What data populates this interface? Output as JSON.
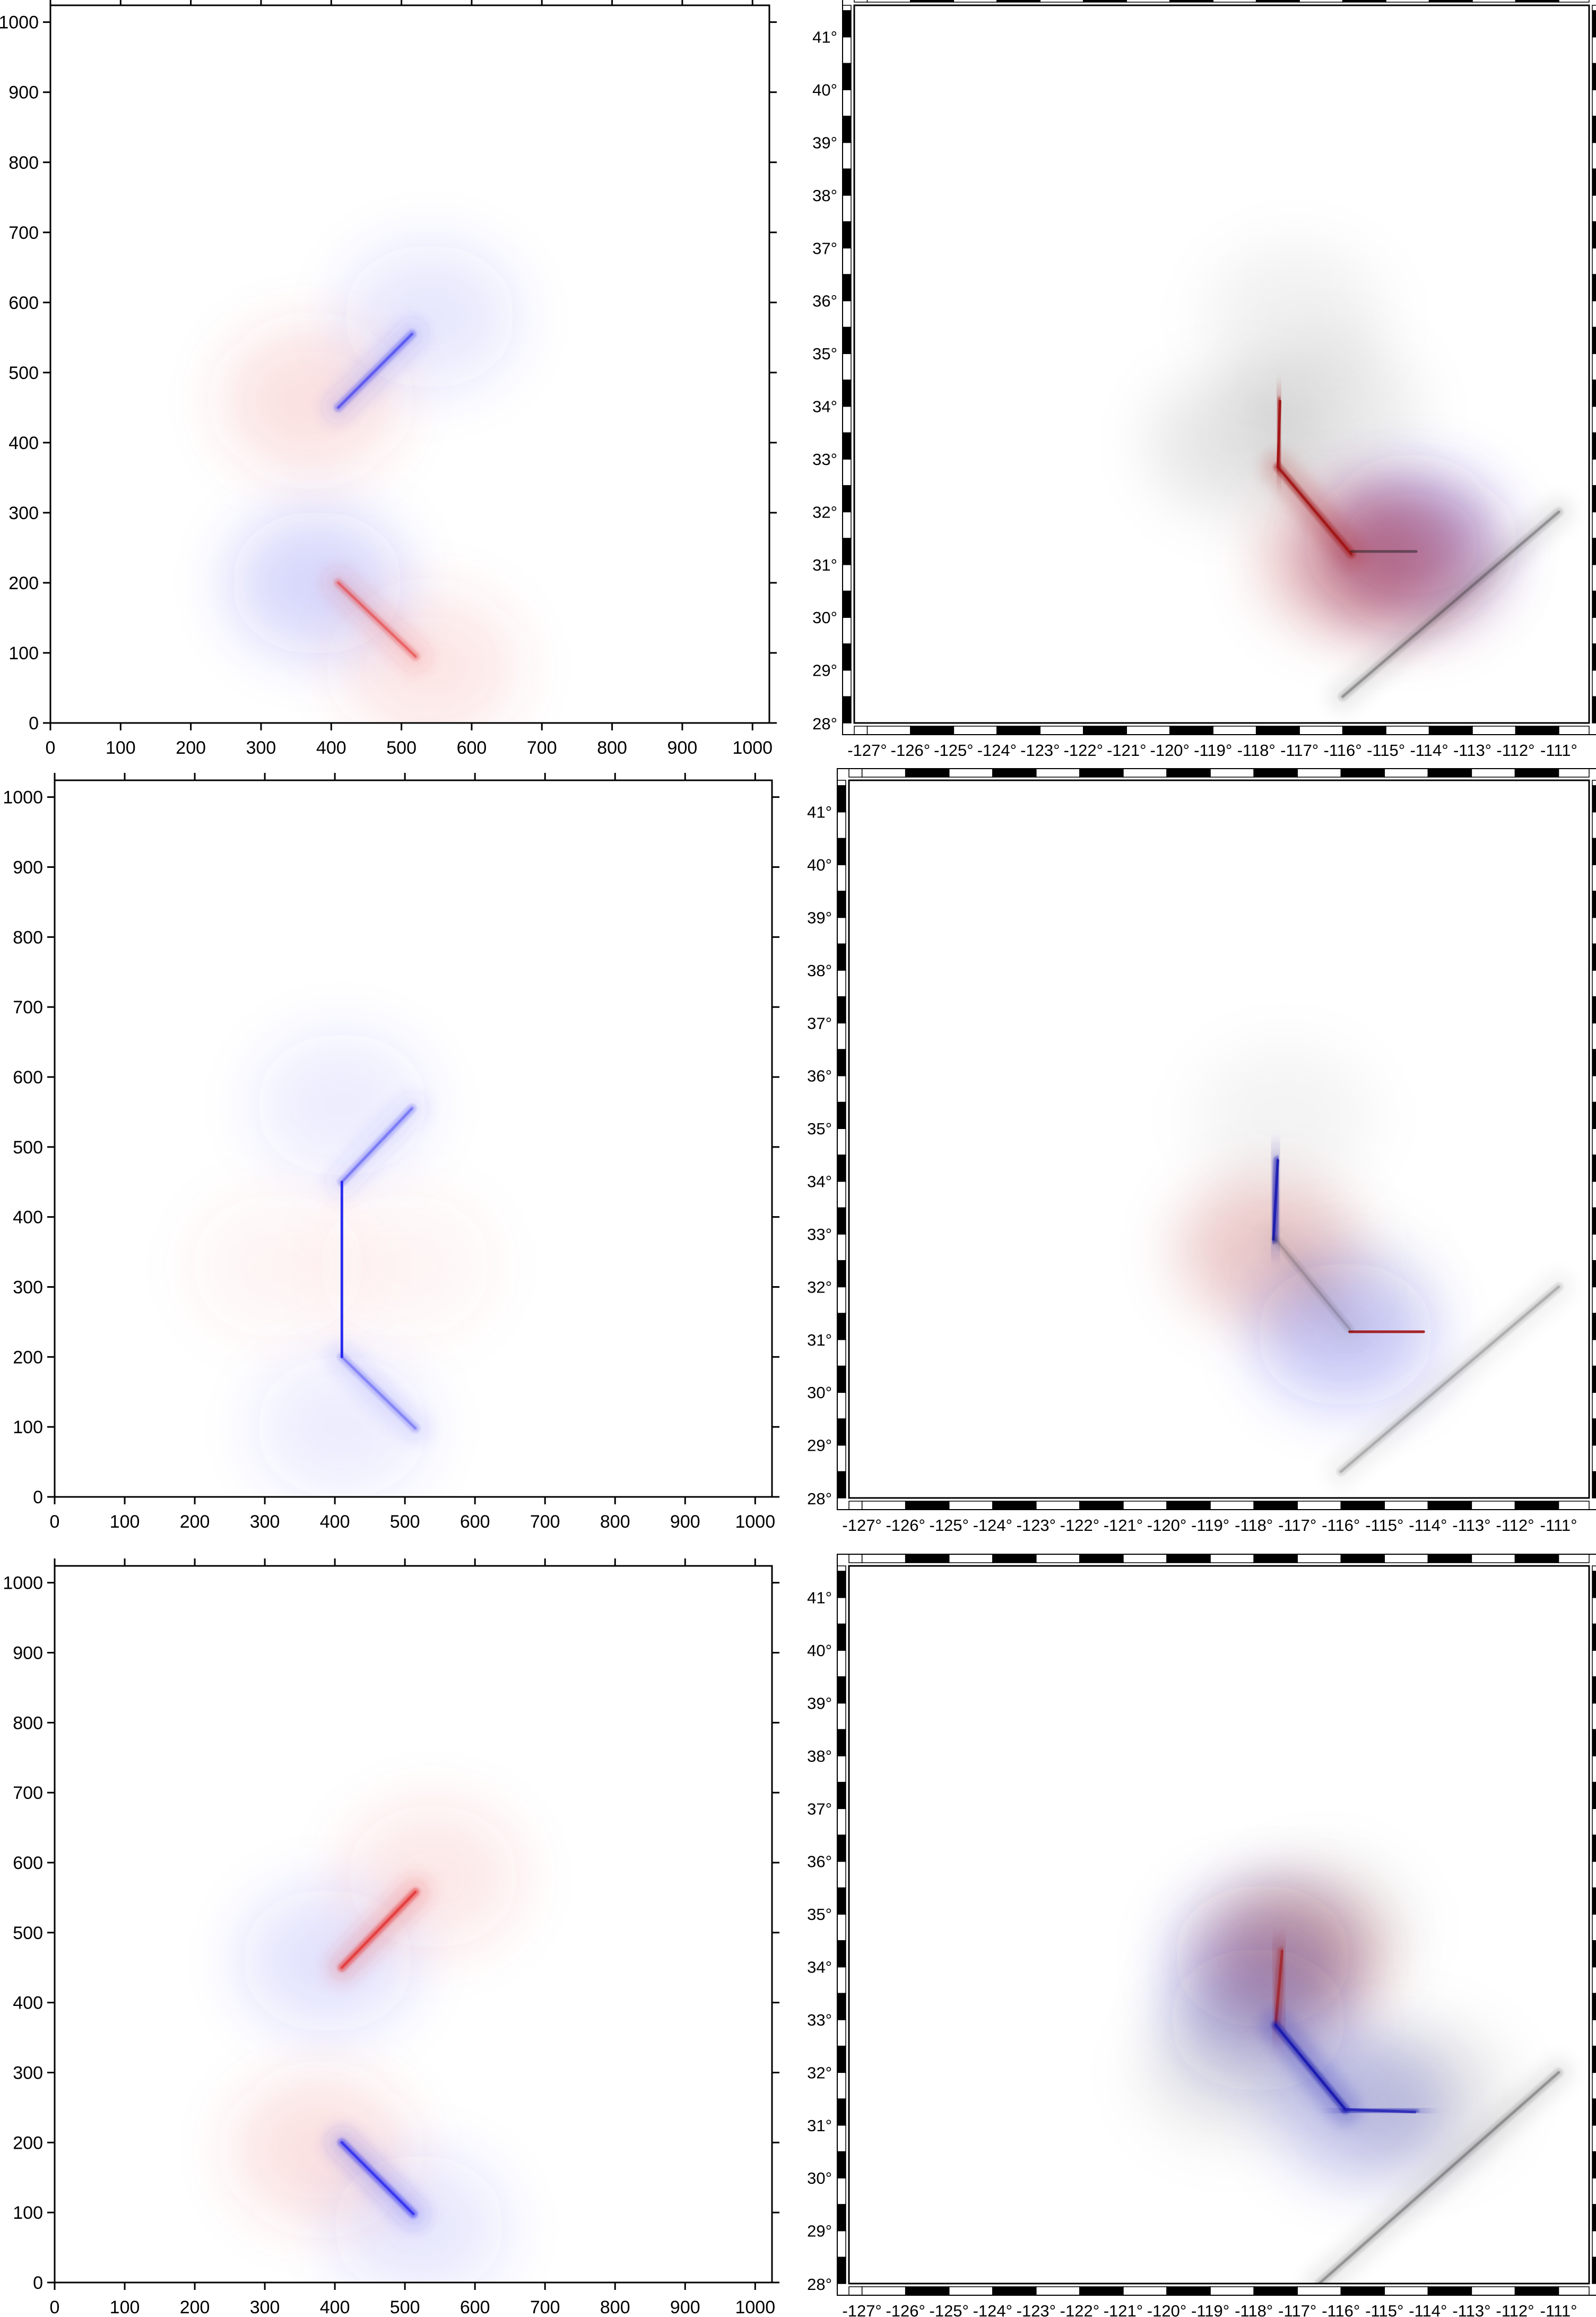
{
  "colors": {
    "positive": "#e53b3b",
    "negative": "#2b2bf0",
    "dark_positive": "#a01010",
    "dark_negative": "#1a1ab0",
    "neutral": "#1a1a1a"
  },
  "chart_data": [
    {
      "type": "heatmap",
      "panel": "row1-left",
      "xlim": [
        0,
        1024
      ],
      "ylim": [
        0,
        1024
      ],
      "x_ticks": [
        "0",
        "100",
        "200",
        "300",
        "400",
        "500",
        "600",
        "700",
        "800",
        "900",
        "1000"
      ],
      "y_ticks": [
        "0",
        "100",
        "200",
        "300",
        "400",
        "500",
        "600",
        "700",
        "800",
        "900",
        "1000"
      ],
      "grid": false,
      "faults": [
        {
          "x": [
            410,
            515
          ],
          "y": [
            450,
            555
          ],
          "sign": "negative",
          "strength": 0.55
        },
        {
          "x": [
            410,
            520
          ],
          "y": [
            200,
            95
          ],
          "sign": "positive",
          "strength": 0.55
        }
      ],
      "lobes": [
        {
          "x": 370,
          "y": 460,
          "sign": "positive",
          "strength": 0.35
        },
        {
          "x": 540,
          "y": 580,
          "sign": "negative",
          "strength": 0.25
        },
        {
          "x": 380,
          "y": 200,
          "sign": "negative",
          "strength": 0.4
        },
        {
          "x": 540,
          "y": 80,
          "sign": "positive",
          "strength": 0.3
        }
      ]
    },
    {
      "type": "heatmap",
      "panel": "row1-right",
      "xlim": [
        -127.3,
        -110.3
      ],
      "ylim": [
        28,
        41.6
      ],
      "x_ticks": [
        "-127°",
        "-126°",
        "-125°",
        "-124°",
        "-123°",
        "-122°",
        "-121°",
        "-120°",
        "-119°",
        "-118°",
        "-117°",
        "-116°",
        "-115°",
        "-114°",
        "-113°",
        "-112°",
        "-111°"
      ],
      "y_ticks": [
        "29°",
        "30°",
        "31°",
        "32°",
        "33°",
        "34°",
        "35°",
        "36°",
        "37°",
        "38°",
        "39°",
        "40°",
        "41°"
      ],
      "grid": false,
      "faults": [
        {
          "x": [
            -117.45,
            -117.5
          ],
          "y": [
            34.1,
            32.85
          ],
          "sign": "dark_positive",
          "strength": 0.9
        },
        {
          "x": [
            -117.5,
            -115.8
          ],
          "y": [
            32.85,
            31.2
          ],
          "sign": "dark_positive",
          "strength": 0.85
        },
        {
          "x": [
            -115.8,
            -114.3
          ],
          "y": [
            31.25,
            31.25
          ],
          "sign": "neutral",
          "strength": 0.5
        },
        {
          "x": [
            -116.0,
            -111.0
          ],
          "y": [
            28.5,
            32.0
          ],
          "sign": "neutral",
          "strength": 0.3
        }
      ],
      "lobes": [
        {
          "x": -118.4,
          "y": 33.3,
          "sign": "neutral",
          "strength": 0.22
        },
        {
          "x": -116.3,
          "y": 33.9,
          "sign": "neutral",
          "strength": 0.18
        },
        {
          "x": -117.1,
          "y": 35.7,
          "sign": "neutral",
          "strength": 0.12
        },
        {
          "x": -114.4,
          "y": 31.4,
          "sign": "negative",
          "strength": 0.7
        },
        {
          "x": -114.5,
          "y": 31.1,
          "sign": "dark_positive",
          "strength": 0.6
        },
        {
          "x": -115.8,
          "y": 31.1,
          "sign": "dark_positive",
          "strength": 0.55
        }
      ]
    },
    {
      "type": "heatmap",
      "panel": "row2-left",
      "xlim": [
        0,
        1024
      ],
      "ylim": [
        0,
        1024
      ],
      "x_ticks": [
        "0",
        "100",
        "200",
        "300",
        "400",
        "500",
        "600",
        "700",
        "800",
        "900",
        "1000"
      ],
      "y_ticks": [
        "0",
        "100",
        "200",
        "300",
        "400",
        "500",
        "600",
        "700",
        "800",
        "900",
        "1000"
      ],
      "grid": false,
      "faults": [
        {
          "x": [
            410,
            410
          ],
          "y": [
            200,
            450
          ],
          "sign": "negative",
          "strength": 1.0
        },
        {
          "x": [
            410,
            510
          ],
          "y": [
            450,
            555
          ],
          "sign": "negative",
          "strength": 0.4
        },
        {
          "x": [
            410,
            515
          ],
          "y": [
            200,
            98
          ],
          "sign": "negative",
          "strength": 0.35
        }
      ],
      "lobes": [
        {
          "x": 410,
          "y": 560,
          "sign": "negative",
          "strength": 0.2
        },
        {
          "x": 410,
          "y": 100,
          "sign": "negative",
          "strength": 0.2
        },
        {
          "x": 320,
          "y": 330,
          "sign": "positive",
          "strength": 0.12
        },
        {
          "x": 500,
          "y": 330,
          "sign": "positive",
          "strength": 0.12
        }
      ]
    },
    {
      "type": "heatmap",
      "panel": "row2-right",
      "xlim": [
        -127.3,
        -110.3
      ],
      "ylim": [
        28,
        41.6
      ],
      "x_ticks": [
        "-127°",
        "-126°",
        "-125°",
        "-124°",
        "-123°",
        "-122°",
        "-121°",
        "-120°",
        "-119°",
        "-118°",
        "-117°",
        "-116°",
        "-115°",
        "-114°",
        "-113°",
        "-112°",
        "-111°"
      ],
      "y_ticks": [
        "29°",
        "30°",
        "31°",
        "32°",
        "33°",
        "34°",
        "35°",
        "36°",
        "37°",
        "38°",
        "39°",
        "40°",
        "41°"
      ],
      "grid": false,
      "faults": [
        {
          "x": [
            -117.45,
            -117.55
          ],
          "y": [
            34.4,
            32.9
          ],
          "sign": "dark_negative",
          "strength": 0.9
        },
        {
          "x": [
            -115.8,
            -114.1
          ],
          "y": [
            31.15,
            31.15
          ],
          "sign": "dark_positive",
          "strength": 0.9
        },
        {
          "x": [
            -117.5,
            -115.8
          ],
          "y": [
            32.9,
            31.2
          ],
          "sign": "neutral",
          "strength": 0.15
        },
        {
          "x": [
            -116.0,
            -111.0
          ],
          "y": [
            28.5,
            32.0
          ],
          "sign": "neutral",
          "strength": 0.2
        }
      ],
      "lobes": [
        {
          "x": -117.7,
          "y": 32.7,
          "sign": "dark_positive",
          "strength": 0.45
        },
        {
          "x": -115.9,
          "y": 31.1,
          "sign": "negative",
          "strength": 0.5
        },
        {
          "x": -117.3,
          "y": 35.2,
          "sign": "neutral",
          "strength": 0.1
        },
        {
          "x": -116.0,
          "y": 31.9,
          "sign": "neutral",
          "strength": 0.1
        }
      ]
    },
    {
      "type": "heatmap",
      "panel": "row3-left",
      "xlim": [
        0,
        1024
      ],
      "ylim": [
        0,
        1024
      ],
      "x_ticks": [
        "0",
        "100",
        "200",
        "300",
        "400",
        "500",
        "600",
        "700",
        "800",
        "900",
        "1000"
      ],
      "y_ticks": [
        "0",
        "100",
        "200",
        "300",
        "400",
        "500",
        "600",
        "700",
        "800",
        "900",
        "1000"
      ],
      "grid": false,
      "faults": [
        {
          "x": [
            410,
            515
          ],
          "y": [
            450,
            558
          ],
          "sign": "positive",
          "strength": 0.9
        },
        {
          "x": [
            410,
            512
          ],
          "y": [
            200,
            98
          ],
          "sign": "negative",
          "strength": 0.8
        }
      ],
      "lobes": [
        {
          "x": 390,
          "y": 460,
          "sign": "negative",
          "strength": 0.3
        },
        {
          "x": 380,
          "y": 190,
          "sign": "positive",
          "strength": 0.35
        },
        {
          "x": 540,
          "y": 580,
          "sign": "positive",
          "strength": 0.25
        },
        {
          "x": 520,
          "y": 80,
          "sign": "negative",
          "strength": 0.25
        }
      ]
    },
    {
      "type": "heatmap",
      "panel": "row3-right",
      "xlim": [
        -127.3,
        -110.3
      ],
      "ylim": [
        28,
        41.6
      ],
      "x_ticks": [
        "-127°",
        "-126°",
        "-125°",
        "-124°",
        "-123°",
        "-122°",
        "-121°",
        "-120°",
        "-119°",
        "-118°",
        "-117°",
        "-116°",
        "-115°",
        "-114°",
        "-113°",
        "-112°",
        "-111°"
      ],
      "y_ticks": [
        "29°",
        "30°",
        "31°",
        "32°",
        "33°",
        "34°",
        "35°",
        "36°",
        "37°",
        "38°",
        "39°",
        "40°",
        "41°"
      ],
      "grid": false,
      "faults": [
        {
          "x": [
            -117.35,
            -117.5
          ],
          "y": [
            34.3,
            32.9
          ],
          "sign": "dark_positive",
          "strength": 0.6
        },
        {
          "x": [
            -117.5,
            -115.9
          ],
          "y": [
            32.9,
            31.3
          ],
          "sign": "dark_negative",
          "strength": 0.95
        },
        {
          "x": [
            -115.9,
            -114.3
          ],
          "y": [
            31.3,
            31.25
          ],
          "sign": "dark_negative",
          "strength": 0.7
        },
        {
          "x": [
            -116.5,
            -111.0
          ],
          "y": [
            28.0,
            32.0
          ],
          "sign": "neutral",
          "strength": 0.3
        }
      ],
      "lobes": [
        {
          "x": -117.8,
          "y": 34.2,
          "sign": "dark_negative",
          "strength": 0.5
        },
        {
          "x": -117.1,
          "y": 34.2,
          "sign": "dark_positive",
          "strength": 0.55
        },
        {
          "x": -117.9,
          "y": 33.0,
          "sign": "dark_negative",
          "strength": 0.5
        },
        {
          "x": -116.4,
          "y": 34.7,
          "sign": "neutral",
          "strength": 0.15
        },
        {
          "x": -118.6,
          "y": 32.0,
          "sign": "neutral",
          "strength": 0.15
        },
        {
          "x": -114.2,
          "y": 31.6,
          "sign": "neutral",
          "strength": 0.2
        },
        {
          "x": -115.5,
          "y": 31.3,
          "sign": "dark_negative",
          "strength": 0.45
        }
      ]
    }
  ]
}
